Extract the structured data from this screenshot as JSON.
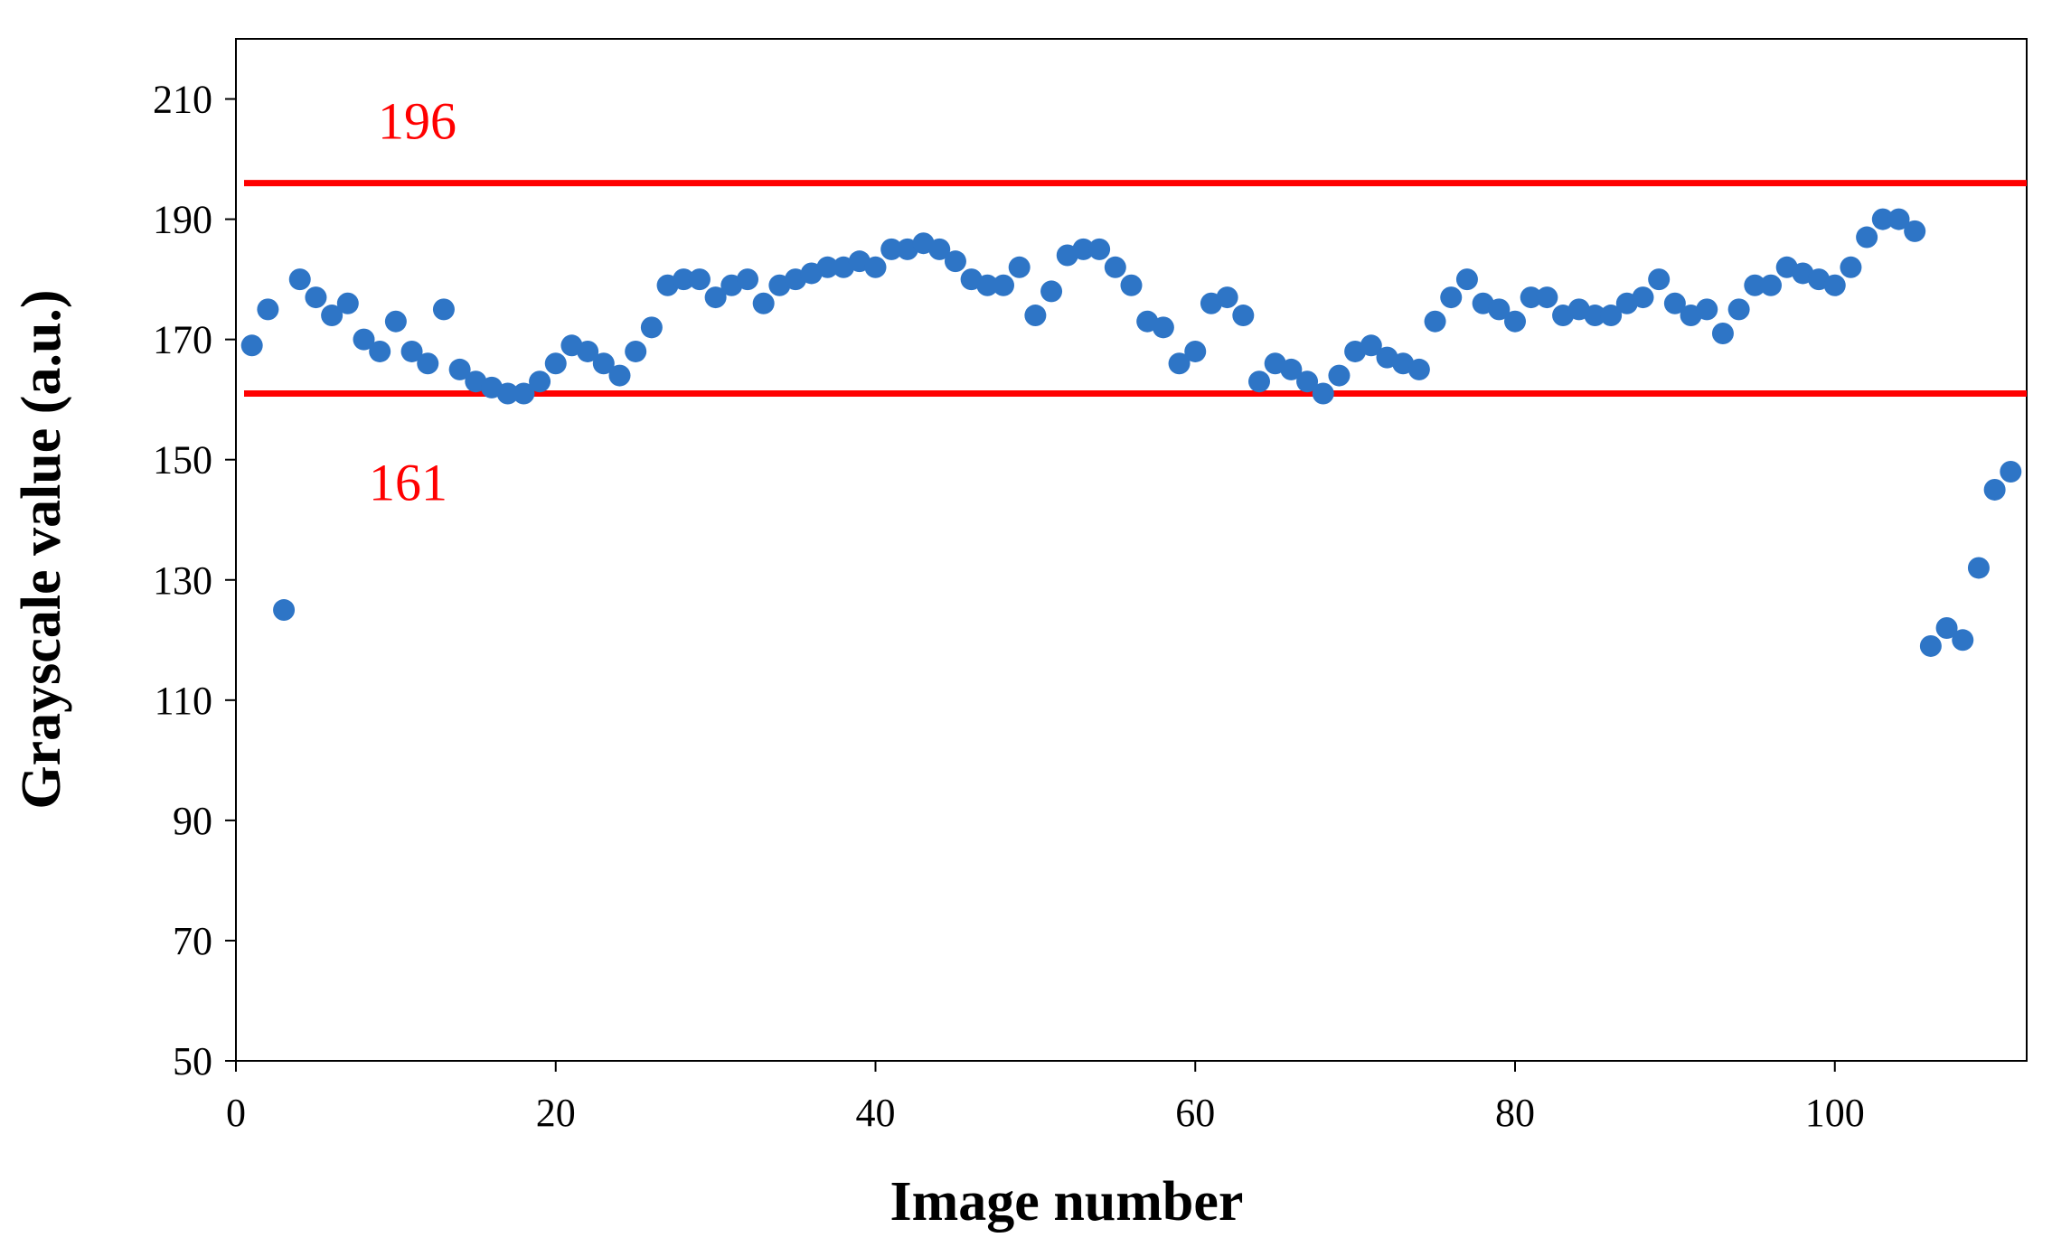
{
  "chart_data": {
    "type": "scatter",
    "title": "",
    "xlabel": "Image number",
    "ylabel": "Grayscale value (a.u.)",
    "xlim": [
      0,
      112
    ],
    "ylim": [
      50,
      220
    ],
    "xticks": [
      0,
      20,
      40,
      60,
      80,
      100
    ],
    "yticks": [
      50,
      70,
      90,
      110,
      130,
      150,
      170,
      190,
      210
    ],
    "grid": false,
    "legend": "none",
    "marker_color": "#2E75C6",
    "series": [
      {
        "x": [
          1,
          2,
          3,
          4,
          5,
          6,
          7,
          8,
          9,
          10,
          11,
          12,
          13,
          14,
          15,
          16,
          17,
          18,
          19,
          20,
          21,
          22,
          23,
          24,
          25,
          26,
          27,
          28,
          29,
          30,
          31,
          32,
          33,
          34,
          35,
          36,
          37,
          38,
          39,
          40,
          41,
          42,
          43,
          44,
          45,
          46,
          47,
          48,
          49,
          50,
          51,
          52,
          53,
          54,
          55,
          56,
          57,
          58,
          59,
          60,
          61,
          62,
          63,
          64,
          65,
          66,
          67,
          68,
          69,
          70,
          71,
          72,
          73,
          74,
          75,
          76,
          77,
          78,
          79,
          80,
          81,
          82,
          83,
          84,
          85,
          86,
          87,
          88,
          89,
          90,
          91,
          92,
          93,
          94,
          95,
          96,
          97,
          98,
          99,
          100,
          101,
          102,
          103,
          104,
          105,
          106,
          107,
          108,
          109,
          110,
          111
        ],
        "y": [
          169,
          175,
          125,
          180,
          177,
          174,
          176,
          170,
          168,
          173,
          168,
          166,
          175,
          165,
          163,
          162,
          161,
          161,
          163,
          166,
          169,
          168,
          166,
          164,
          168,
          172,
          179,
          180,
          180,
          177,
          179,
          180,
          176,
          179,
          180,
          181,
          182,
          182,
          183,
          182,
          185,
          185,
          186,
          185,
          183,
          180,
          179,
          179,
          182,
          174,
          178,
          184,
          185,
          185,
          182,
          179,
          173,
          172,
          166,
          168,
          176,
          177,
          174,
          163,
          166,
          165,
          163,
          161,
          164,
          168,
          169,
          167,
          166,
          165,
          173,
          177,
          180,
          176,
          175,
          173,
          177,
          177,
          174,
          175,
          174,
          174,
          176,
          177,
          180,
          176,
          174,
          175,
          171,
          175,
          179,
          179,
          182,
          181,
          180,
          179,
          182,
          187,
          190,
          190,
          188,
          119,
          122,
          120,
          132,
          145,
          148
        ]
      }
    ],
    "reference_lines": [
      {
        "y": 196,
        "label": "196",
        "color": "#FF0000"
      },
      {
        "y": 161,
        "label": "161",
        "color": "#FF0000"
      }
    ]
  }
}
